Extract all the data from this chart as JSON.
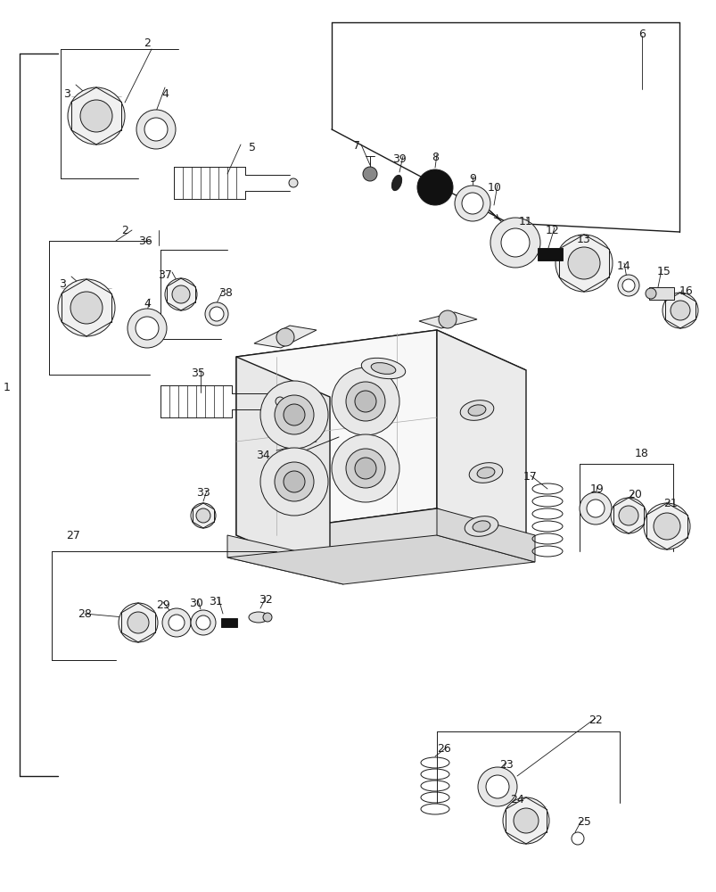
{
  "background_color": "#ffffff",
  "figsize": [
    8.04,
    10.0
  ],
  "dpi": 100,
  "line_color": "#1a1a1a",
  "lw_main": 1.0,
  "lw_thin": 0.7
}
